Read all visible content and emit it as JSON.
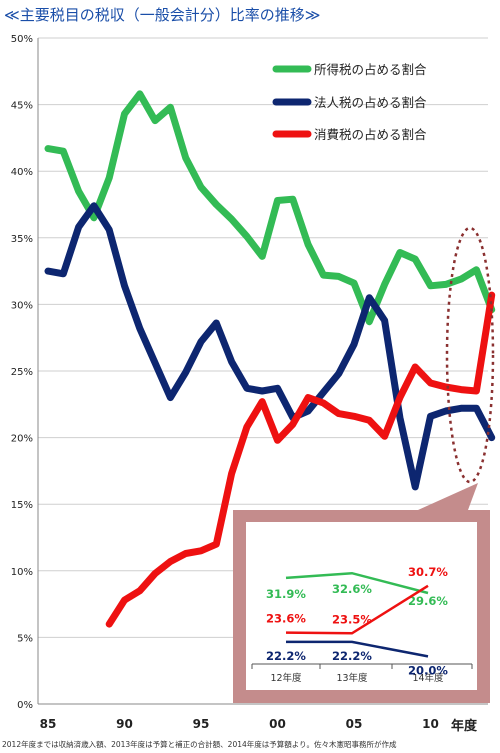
{
  "title": "≪主要税目の税収（一般会計分）比率の推移≫",
  "footnote": "2012年度までは収納済歳入額、2013年度は予算と補正の合計額、2014年度は予算額より。佐々木憲昭事務所が作成",
  "chart_data": {
    "type": "line",
    "xlabel": "年度",
    "ylabel": "",
    "ylim": [
      0,
      50
    ],
    "yticks": [
      0,
      5,
      10,
      15,
      20,
      25,
      30,
      35,
      40,
      45,
      50
    ],
    "ytick_labels": [
      "0%",
      "5%",
      "10%",
      "15%",
      "20%",
      "25%",
      "30%",
      "35%",
      "40%",
      "45%",
      "50%"
    ],
    "x_range": [
      1985,
      2014
    ],
    "xticks": [
      1985,
      1990,
      1995,
      2000,
      2005,
      2010
    ],
    "xtick_labels": [
      "85",
      "90",
      "95",
      "00",
      "05",
      "10"
    ],
    "legend_position": "top-right",
    "series": [
      {
        "name": "所得税の占める割合",
        "color": "#33bb55",
        "x": [
          1985,
          1986,
          1987,
          1988,
          1989,
          1990,
          1991,
          1992,
          1993,
          1994,
          1995,
          1996,
          1997,
          1998,
          1999,
          2000,
          2001,
          2002,
          2003,
          2004,
          2005,
          2006,
          2007,
          2008,
          2009,
          2010,
          2011,
          2012,
          2013,
          2014
        ],
        "values": [
          41.7,
          41.5,
          38.5,
          36.5,
          39.5,
          44.3,
          45.8,
          43.8,
          44.8,
          41.0,
          38.8,
          37.5,
          36.4,
          35.1,
          33.6,
          37.8,
          37.9,
          34.5,
          32.2,
          32.1,
          31.6,
          28.7,
          31.5,
          33.9,
          33.4,
          31.4,
          31.5,
          31.9,
          32.6,
          29.6
        ]
      },
      {
        "name": "法人税の占める割合",
        "color": "#0d2670",
        "x": [
          1985,
          1986,
          1987,
          1988,
          1989,
          1990,
          1991,
          1992,
          1993,
          1994,
          1995,
          1996,
          1997,
          1998,
          1999,
          2000,
          2001,
          2002,
          2003,
          2004,
          2005,
          2006,
          2007,
          2008,
          2009,
          2010,
          2011,
          2012,
          2013,
          2014
        ],
        "values": [
          32.5,
          32.3,
          35.8,
          37.4,
          35.6,
          31.4,
          28.2,
          25.6,
          23.0,
          24.9,
          27.2,
          28.6,
          25.7,
          23.7,
          23.5,
          23.7,
          21.5,
          22.0,
          23.4,
          24.8,
          27.0,
          30.5,
          28.8,
          21.5,
          16.3,
          21.6,
          22.0,
          22.2,
          22.2,
          20.0
        ]
      },
      {
        "name": "消費税の占める割合",
        "color": "#ee1111",
        "x": [
          1989,
          1990,
          1991,
          1992,
          1993,
          1994,
          1995,
          1996,
          1997,
          1998,
          1999,
          2000,
          2001,
          2002,
          2003,
          2004,
          2005,
          2006,
          2007,
          2008,
          2009,
          2010,
          2011,
          2012,
          2013,
          2014
        ],
        "values": [
          6.0,
          7.8,
          8.5,
          9.8,
          10.7,
          11.3,
          11.5,
          12.0,
          17.3,
          20.8,
          22.7,
          19.8,
          21.0,
          23.0,
          22.6,
          21.8,
          21.6,
          21.3,
          20.1,
          23.0,
          25.3,
          24.1,
          23.8,
          23.6,
          23.5,
          30.7
        ]
      }
    ],
    "inset": {
      "categories": [
        "12年度",
        "13年度",
        "14年度"
      ],
      "series": [
        {
          "name": "所得税の占める割合",
          "values": [
            31.9,
            32.6,
            29.6
          ],
          "labels": [
            "31.9%",
            "32.6%",
            "29.6%"
          ],
          "color": "#33bb55"
        },
        {
          "name": "消費税の占める割合",
          "values": [
            23.6,
            23.5,
            30.7
          ],
          "labels": [
            "23.6%",
            "23.5%",
            "30.7%"
          ],
          "color": "#ee1111"
        },
        {
          "name": "法人税の占める割合",
          "values": [
            22.2,
            22.2,
            20.0
          ],
          "labels": [
            "22.2%",
            "22.2%",
            "20.0%"
          ],
          "color": "#0d2670"
        }
      ]
    }
  }
}
